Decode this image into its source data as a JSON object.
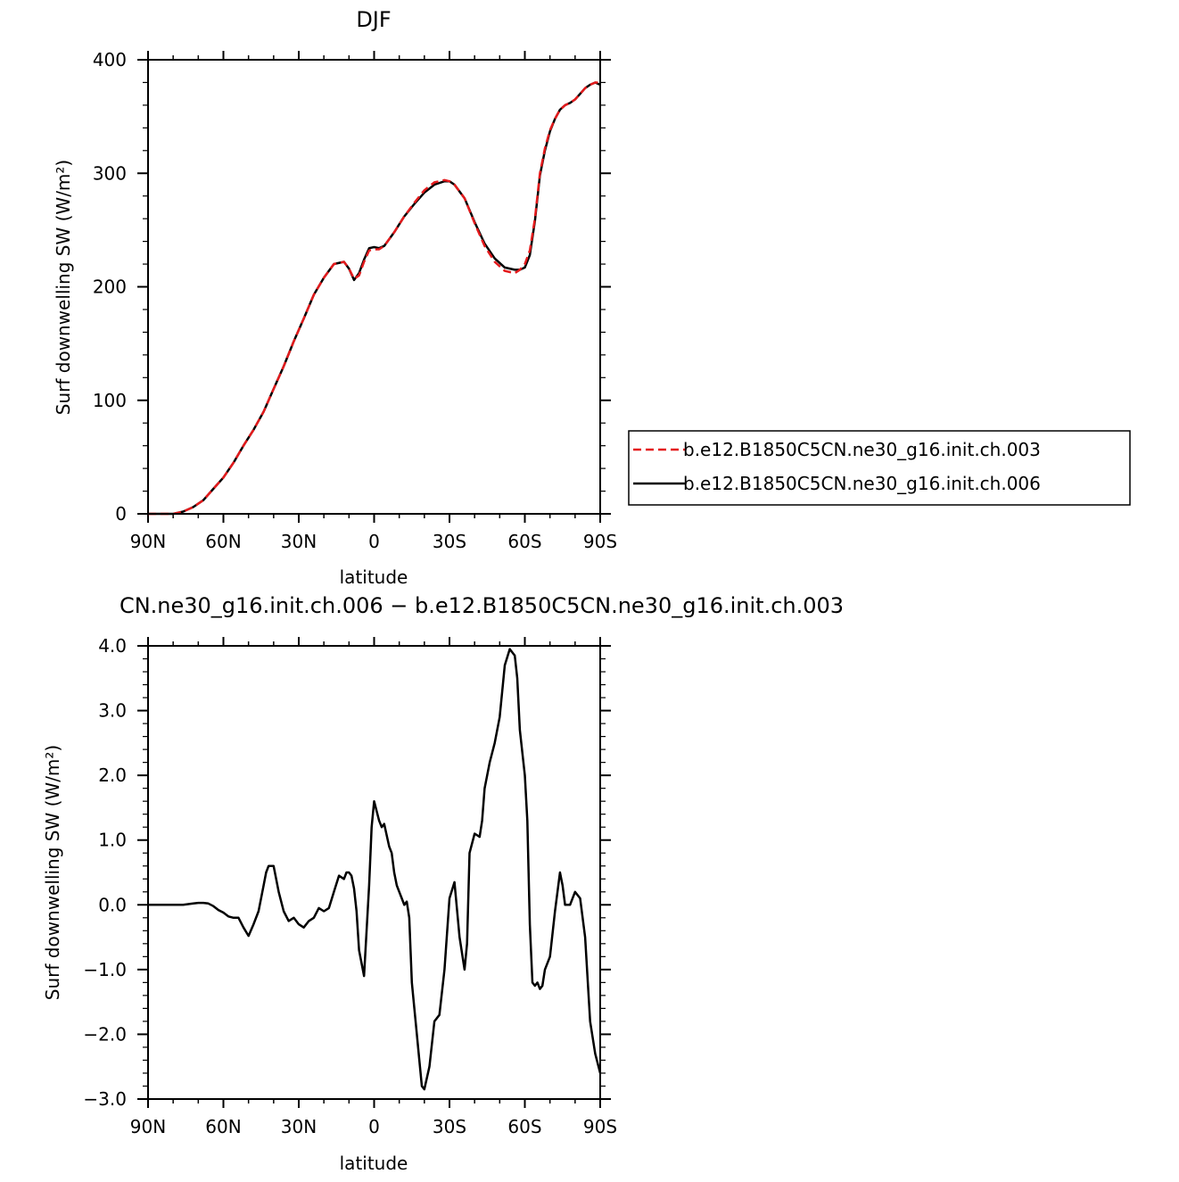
{
  "colors": {
    "series_003": "#e41a1c",
    "series_006": "#000000",
    "background": "#ffffff",
    "axis": "#000000"
  },
  "chart_data": [
    {
      "type": "line",
      "title": "DJF",
      "xlabel": "latitude",
      "ylabel": "Surf downwelling SW (W/m²)",
      "xlim": [
        90,
        -90
      ],
      "ylim": [
        0,
        400
      ],
      "xticks": [
        {
          "value": 90,
          "label": "90N"
        },
        {
          "value": 60,
          "label": "60N"
        },
        {
          "value": 30,
          "label": "30N"
        },
        {
          "value": 0,
          "label": "0"
        },
        {
          "value": -30,
          "label": "30S"
        },
        {
          "value": -60,
          "label": "60S"
        },
        {
          "value": -90,
          "label": "90S"
        }
      ],
      "yticks": [
        {
          "value": 0,
          "label": "0"
        },
        {
          "value": 100,
          "label": "100"
        },
        {
          "value": 200,
          "label": "200"
        },
        {
          "value": 300,
          "label": "300"
        },
        {
          "value": 400,
          "label": "400"
        }
      ],
      "grid": false,
      "legend": "right",
      "series": [
        {
          "name": "b.e12.B1850C5CN.ne30_g16.init.ch.003",
          "style": "dashed",
          "color": "#e41a1c",
          "x": [
            90,
            84,
            80,
            76,
            72,
            68,
            64,
            60,
            56,
            52,
            48,
            44,
            40,
            36,
            32,
            28,
            24,
            20,
            16,
            12,
            10,
            8,
            6,
            4,
            2,
            0,
            -2,
            -4,
            -6,
            -8,
            -12,
            -16,
            -20,
            -24,
            -28,
            -30,
            -32,
            -36,
            -40,
            -44,
            -48,
            -52,
            -56,
            -58,
            -60,
            -62,
            -64,
            -66,
            -68,
            -70,
            -72,
            -74,
            -76,
            -78,
            -80,
            -82,
            -84,
            -86,
            -88,
            -90
          ],
          "y": [
            0,
            0,
            0,
            2,
            6,
            12,
            22,
            32,
            45,
            60,
            74,
            90,
            110,
            130,
            152,
            172,
            193,
            208,
            220,
            222,
            216,
            207,
            210,
            222,
            232,
            233,
            233,
            236,
            242,
            248,
            262,
            274,
            285,
            292,
            294,
            293,
            290,
            278,
            256,
            236,
            222,
            214,
            212,
            215,
            220,
            232,
            260,
            300,
            322,
            338,
            348,
            356,
            360,
            362,
            365,
            370,
            375,
            378,
            380,
            380
          ]
        },
        {
          "name": "b.e12.B1850C5CN.ne30_g16.init.ch.006",
          "style": "solid",
          "color": "#000000",
          "x": [
            90,
            84,
            80,
            76,
            72,
            68,
            64,
            60,
            56,
            52,
            48,
            44,
            40,
            36,
            32,
            28,
            24,
            20,
            16,
            12,
            10,
            8,
            6,
            4,
            2,
            0,
            -2,
            -4,
            -6,
            -8,
            -12,
            -16,
            -20,
            -24,
            -28,
            -30,
            -32,
            -36,
            -40,
            -44,
            -48,
            -52,
            -56,
            -58,
            -60,
            -62,
            -64,
            -66,
            -68,
            -70,
            -72,
            -74,
            -76,
            -78,
            -80,
            -82,
            -84,
            -86,
            -88,
            -90
          ],
          "y": [
            0,
            0,
            0,
            2,
            6,
            12,
            22,
            32,
            45,
            60,
            74,
            90,
            110,
            130,
            152,
            172,
            193,
            208,
            220,
            222,
            216,
            206,
            212,
            224,
            234,
            235,
            234,
            236,
            242,
            248,
            262,
            273,
            283,
            290,
            293,
            293,
            290,
            278,
            257,
            238,
            225,
            217,
            215,
            215,
            217,
            228,
            258,
            298,
            320,
            337,
            348,
            356,
            360,
            362,
            365,
            370,
            375,
            378,
            380,
            378
          ]
        }
      ]
    },
    {
      "type": "line",
      "title": "CN.ne30_g16.init.ch.006 − b.e12.B1850C5CN.ne30_g16.init.ch.003",
      "xlabel": "latitude",
      "ylabel": "Surf downwelling SW (W/m²)",
      "xlim": [
        90,
        -90
      ],
      "ylim": [
        -3.0,
        4.0
      ],
      "xticks": [
        {
          "value": 90,
          "label": "90N"
        },
        {
          "value": 60,
          "label": "60N"
        },
        {
          "value": 30,
          "label": "30N"
        },
        {
          "value": 0,
          "label": "0"
        },
        {
          "value": -30,
          "label": "30S"
        },
        {
          "value": -60,
          "label": "60S"
        },
        {
          "value": -90,
          "label": "90S"
        }
      ],
      "yticks": [
        {
          "value": -3.0,
          "label": "−3.0"
        },
        {
          "value": -2.0,
          "label": "−2.0"
        },
        {
          "value": -1.0,
          "label": "−1.0"
        },
        {
          "value": 0.0,
          "label": "0.0"
        },
        {
          "value": 1.0,
          "label": "1.0"
        },
        {
          "value": 2.0,
          "label": "2.0"
        },
        {
          "value": 3.0,
          "label": "3.0"
        },
        {
          "value": 4.0,
          "label": "4.0"
        }
      ],
      "grid": false,
      "series": [
        {
          "style": "solid",
          "color": "#000000",
          "x": [
            90,
            80,
            76,
            72,
            70,
            68,
            66,
            64,
            62,
            60,
            58,
            56,
            54,
            52,
            50,
            48,
            46,
            44,
            43,
            42,
            40,
            38,
            36,
            34,
            32,
            30,
            28,
            26,
            24,
            22,
            20,
            18,
            16,
            14,
            12,
            11,
            10,
            9,
            8,
            7,
            6,
            4,
            2,
            1,
            0,
            -2,
            -3,
            -4,
            -6,
            -7,
            -8,
            -9,
            -10,
            -11,
            -12,
            -13,
            -14,
            -15,
            -16,
            -17,
            -18,
            -19,
            -20,
            -22,
            -24,
            -26,
            -28,
            -30,
            -32,
            -34,
            -36,
            -37,
            -38,
            -40,
            -42,
            -43,
            -44,
            -46,
            -48,
            -50,
            -52,
            -54,
            -56,
            -57,
            -58,
            -60,
            -61,
            -62,
            -63,
            -64,
            -65,
            -66,
            -67,
            -68,
            -70,
            -72,
            -74,
            -75,
            -76,
            -78,
            -80,
            -82,
            -84,
            -86,
            -88,
            -90
          ],
          "y": [
            0,
            0,
            0,
            0.02,
            0.03,
            0.03,
            0.02,
            -0.02,
            -0.08,
            -0.12,
            -0.18,
            -0.2,
            -0.2,
            -0.35,
            -0.48,
            -0.3,
            -0.1,
            0.3,
            0.5,
            0.6,
            0.6,
            0.2,
            -0.1,
            -0.25,
            -0.2,
            -0.3,
            -0.35,
            -0.25,
            -0.2,
            -0.05,
            -0.1,
            -0.05,
            0.2,
            0.45,
            0.4,
            0.5,
            0.5,
            0.45,
            0.25,
            -0.1,
            -0.7,
            -1.1,
            0.3,
            1.2,
            1.6,
            1.3,
            1.2,
            1.25,
            0.9,
            0.8,
            0.5,
            0.3,
            0.2,
            0.1,
            0.0,
            0.05,
            -0.2,
            -1.2,
            -1.6,
            -2.0,
            -2.4,
            -2.8,
            -2.85,
            -2.5,
            -1.8,
            -1.7,
            -1.0,
            0.1,
            0.35,
            -0.5,
            -1.0,
            -0.6,
            0.8,
            1.1,
            1.05,
            1.3,
            1.8,
            2.2,
            2.5,
            2.9,
            3.7,
            3.95,
            3.85,
            3.5,
            2.7,
            2.0,
            1.3,
            -0.3,
            -1.2,
            -1.25,
            -1.2,
            -1.3,
            -1.25,
            -1.0,
            -0.8,
            -0.1,
            0.5,
            0.3,
            0.0,
            0.0,
            0.2,
            0.1,
            -0.5,
            -1.8,
            -2.3,
            -2.6
          ]
        }
      ]
    }
  ]
}
